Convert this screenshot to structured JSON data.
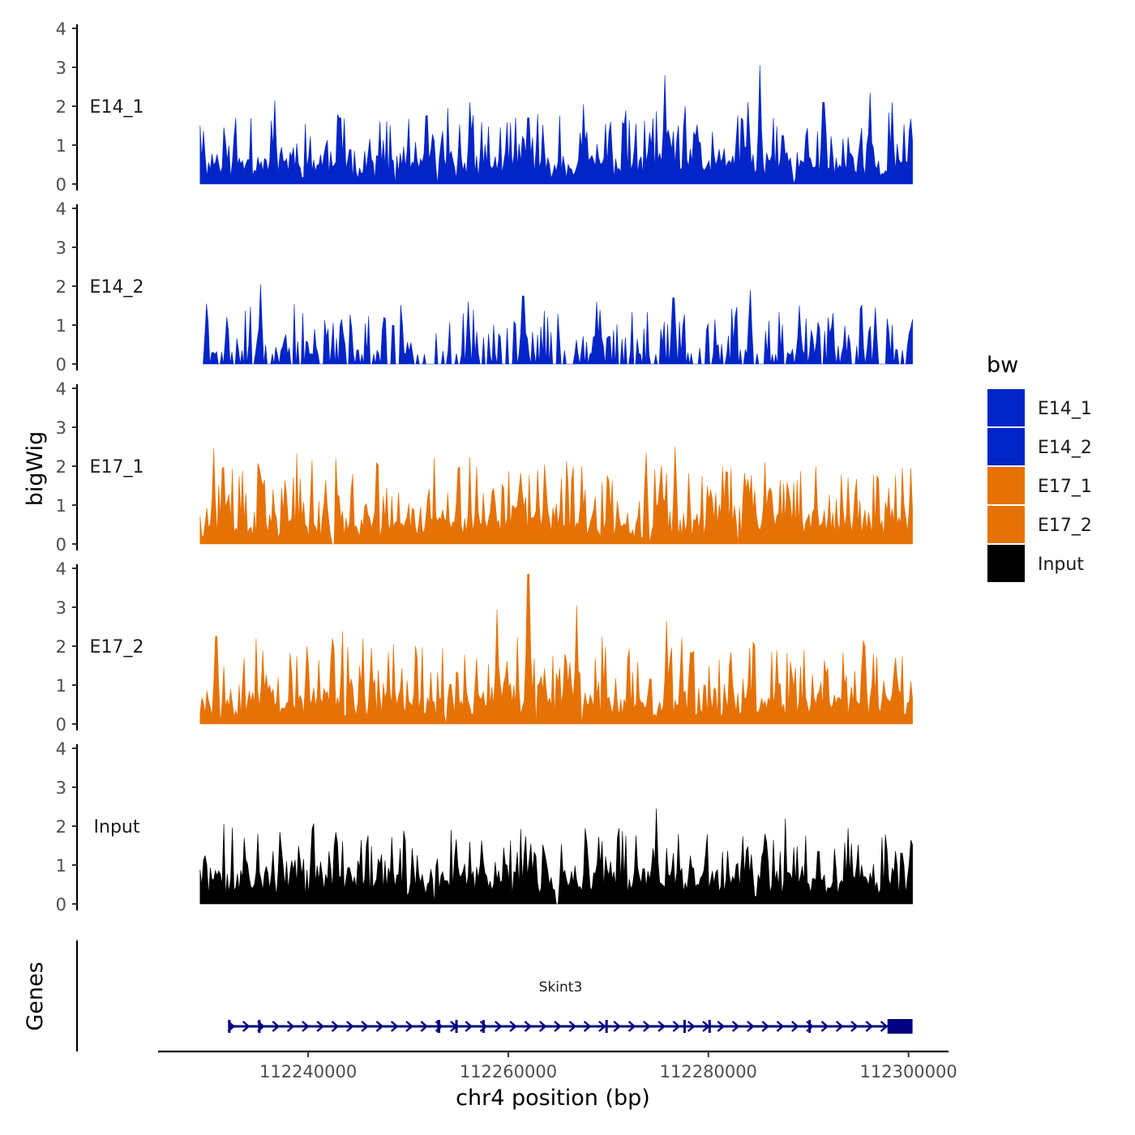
{
  "chart_data": {
    "type": "area",
    "chromosome": "chr4",
    "xlabel": "chr4 position (bp)",
    "ylabel": "bigWig",
    "xlim": [
      112225000,
      112304000
    ],
    "ylim": [
      0,
      4
    ],
    "y_ticks": [
      "0",
      "1",
      "2",
      "3",
      "4"
    ],
    "x_ticks": [
      {
        "value": 112240000,
        "label": "112240000"
      },
      {
        "value": 112260000,
        "label": "112260000"
      },
      {
        "value": 112280000,
        "label": "112280000"
      },
      {
        "value": 112300000,
        "label": "112300000"
      }
    ],
    "legend": {
      "title": "bw",
      "items": [
        {
          "label": "E14_1",
          "color": "#0225C8"
        },
        {
          "label": "E14_2",
          "color": "#0225C8"
        },
        {
          "label": "E17_1",
          "color": "#E67206"
        },
        {
          "label": "E17_2",
          "color": "#E67206"
        },
        {
          "label": "Input",
          "color": "#000000"
        }
      ]
    },
    "series": [
      {
        "name": "E14_1",
        "color": "#0225C8",
        "x_start": 112229200,
        "x_end": 112300400,
        "seed": 11,
        "base": 0.55,
        "amp": 0.9,
        "gaps": [
          [
            112248600,
            112248800
          ],
          [
            112252800,
            112253000
          ],
          [
            112288500,
            112288700
          ]
        ],
        "peaks": [
          [
            112229250,
            1.5
          ],
          [
            112236600,
            2.15
          ],
          [
            112243200,
            1.7
          ],
          [
            112251800,
            1.75
          ],
          [
            112256100,
            2.1
          ],
          [
            112262000,
            1.7
          ],
          [
            112267500,
            2.05
          ],
          [
            112275600,
            2.8
          ],
          [
            112284000,
            2.1
          ],
          [
            112285200,
            3.05
          ],
          [
            112291500,
            2.1
          ],
          [
            112296200,
            2.35
          ],
          [
            112298300,
            2.1
          ]
        ]
      },
      {
        "name": "E14_2",
        "color": "#0225C8",
        "x_start": 112229500,
        "x_end": 112300400,
        "seed": 23,
        "base": 0.25,
        "amp": 1.0,
        "sparse": true,
        "peaks": [
          [
            112229800,
            1.55
          ],
          [
            112231800,
            1.2
          ],
          [
            112235200,
            2.05
          ],
          [
            112247500,
            1.2
          ],
          [
            112256000,
            1.6
          ],
          [
            112261500,
            1.75
          ],
          [
            112268900,
            1.6
          ],
          [
            112276500,
            1.7
          ],
          [
            112284200,
            1.9
          ],
          [
            112289100,
            1.5
          ],
          [
            112296700,
            1.45
          ],
          [
            112300000,
            0.8
          ]
        ]
      },
      {
        "name": "E17_1",
        "color": "#E67206",
        "x_start": 112229200,
        "x_end": 112300400,
        "seed": 37,
        "base": 0.55,
        "amp": 1.1,
        "gaps": [
          [
            112242400,
            112242600
          ],
          [
            112274000,
            112274200
          ],
          [
            112282900,
            112283100
          ]
        ],
        "peaks": [
          [
            112230600,
            2.45
          ],
          [
            112235400,
            1.5
          ],
          [
            112242800,
            2.2
          ],
          [
            112255000,
            1.95
          ],
          [
            112263000,
            1.9
          ],
          [
            112267300,
            2.0
          ],
          [
            112273800,
            2.35
          ],
          [
            112276600,
            2.5
          ],
          [
            112285600,
            2.1
          ],
          [
            112290800,
            2.0
          ],
          [
            112294000,
            1.7
          ],
          [
            112300200,
            1.95
          ]
        ]
      },
      {
        "name": "E17_2",
        "color": "#E67206",
        "x_start": 112229200,
        "x_end": 112300400,
        "seed": 53,
        "base": 0.6,
        "amp": 1.15,
        "gaps": [
          [
            112231200,
            112231400
          ],
          [
            112253700,
            112253900
          ],
          [
            112262600,
            112262800
          ],
          [
            112267300,
            112267500
          ]
        ],
        "peaks": [
          [
            112230800,
            2.25
          ],
          [
            112242400,
            2.2
          ],
          [
            112248000,
            1.85
          ],
          [
            112258800,
            2.95
          ],
          [
            112262000,
            3.85
          ],
          [
            112266900,
            3.05
          ],
          [
            112275800,
            2.65
          ],
          [
            112282300,
            1.85
          ],
          [
            112286800,
            1.9
          ],
          [
            112296500,
            1.8
          ]
        ]
      },
      {
        "name": "Input",
        "color": "#000000",
        "x_start": 112229200,
        "x_end": 112300400,
        "seed": 71,
        "base": 0.7,
        "amp": 0.9,
        "gaps": [
          [
            112252500,
            112252700
          ],
          [
            112264800,
            112265000
          ]
        ],
        "peaks": [
          [
            112235000,
            1.8
          ],
          [
            112237200,
            1.85
          ],
          [
            112242100,
            1.35
          ],
          [
            112256200,
            1.6
          ],
          [
            112262300,
            1.55
          ],
          [
            112274800,
            2.45
          ],
          [
            112277000,
            1.8
          ],
          [
            112285600,
            1.8
          ],
          [
            112291000,
            1.35
          ],
          [
            112297900,
            1.4
          ],
          [
            112300200,
            1.3
          ]
        ]
      }
    ],
    "genes_track": {
      "title": "Genes",
      "gene_name": "Skint3",
      "strand": "+",
      "color": "#000080",
      "start": 112232000,
      "end": 112300400,
      "exons": [
        [
          112232000,
          112232200
        ],
        [
          112235000,
          112235100
        ],
        [
          112252900,
          112253200
        ],
        [
          112254700,
          112254900
        ],
        [
          112257400,
          112257500
        ],
        [
          112269700,
          112269800
        ],
        [
          112277500,
          112277600
        ],
        [
          112280000,
          112280100
        ],
        [
          112290000,
          112290100
        ],
        [
          112297900,
          112300400
        ]
      ]
    }
  }
}
